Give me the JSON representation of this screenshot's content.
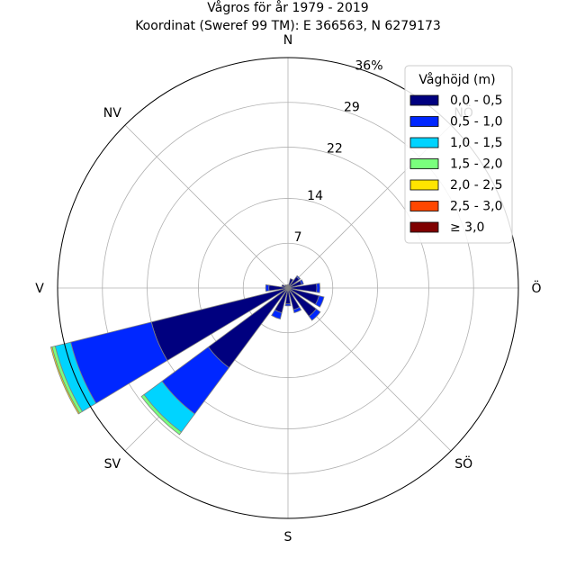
{
  "chart_data": {
    "type": "windrose",
    "title": "Vågros för år 1979 - 2019",
    "subtitle": "Koordinat (Sweref 99 TM): E 366563, N 6279173",
    "directions": [
      {
        "label": "N",
        "angle": 0
      },
      {
        "label": "NV",
        "angle": 315
      },
      {
        "label": "V",
        "angle": 270
      },
      {
        "label": "SV",
        "angle": 225
      },
      {
        "label": "S",
        "angle": 180
      },
      {
        "label": "SÖ",
        "angle": 135
      },
      {
        "label": "Ö",
        "angle": 90
      },
      {
        "label": "NÖ",
        "angle": 45
      }
    ],
    "radial_ticks": [
      "7",
      "14",
      "22",
      "29",
      "36%"
    ],
    "radial_max": 36,
    "radial_tick_values": [
      7,
      14,
      22,
      29,
      36
    ],
    "legend_title": "Våghöjd (m)",
    "legend_position": "top-right",
    "bins": [
      {
        "label": "0,0 - 0,5",
        "color": "#00007f"
      },
      {
        "label": "0,5 - 1,0",
        "color": "#0027ff"
      },
      {
        "label": "1,0 - 1,5",
        "color": "#00d4ff"
      },
      {
        "label": "1,5 - 2,0",
        "color": "#7aff7d"
      },
      {
        "label": "2,0 - 2,5",
        "color": "#ffe500"
      },
      {
        "label": "2,5 - 3,0",
        "color": "#ff4700"
      },
      {
        "label": "≥ 3,0",
        "color": "#7f0000"
      }
    ],
    "sectors": [
      {
        "direction": 0,
        "values": [
          0.5,
          0,
          0,
          0,
          0,
          0,
          0
        ]
      },
      {
        "direction": 22.5,
        "values": [
          1.5,
          0,
          0,
          0,
          0,
          0,
          0
        ]
      },
      {
        "direction": 45,
        "values": [
          2.2,
          0.2,
          0,
          0,
          0,
          0,
          0
        ]
      },
      {
        "direction": 67.5,
        "values": [
          2.2,
          0.3,
          0,
          0,
          0,
          0,
          0
        ]
      },
      {
        "direction": 90,
        "values": [
          4.5,
          0.5,
          0,
          0,
          0,
          0,
          0
        ]
      },
      {
        "direction": 112.5,
        "values": [
          5.0,
          0.8,
          0,
          0,
          0,
          0,
          0
        ]
      },
      {
        "direction": 135,
        "values": [
          5.5,
          0.8,
          0,
          0,
          0,
          0,
          0
        ]
      },
      {
        "direction": 157.5,
        "values": [
          3.5,
          0.5,
          0,
          0,
          0,
          0,
          0
        ]
      },
      {
        "direction": 180,
        "values": [
          2.5,
          0.3,
          0,
          0,
          0,
          0,
          0
        ]
      },
      {
        "direction": 202.5,
        "values": [
          4.0,
          1.0,
          0,
          0,
          0,
          0,
          0
        ]
      },
      {
        "direction": 225,
        "values": [
          15.5,
          9.0,
          3.5,
          0.5,
          0,
          0,
          0
        ]
      },
      {
        "direction": 247.5,
        "values": [
          22.0,
          13.0,
          2.5,
          0.5,
          0.2,
          0,
          0
        ]
      },
      {
        "direction": 270,
        "values": [
          3.0,
          0.5,
          0,
          0,
          0,
          0,
          0
        ]
      },
      {
        "direction": 292.5,
        "values": [
          1.0,
          0,
          0,
          0,
          0,
          0,
          0
        ]
      },
      {
        "direction": 315,
        "values": [
          0.6,
          0,
          0,
          0,
          0,
          0,
          0
        ]
      },
      {
        "direction": 337.5,
        "values": [
          0.5,
          0,
          0,
          0,
          0,
          0,
          0
        ]
      }
    ],
    "grid": true
  }
}
